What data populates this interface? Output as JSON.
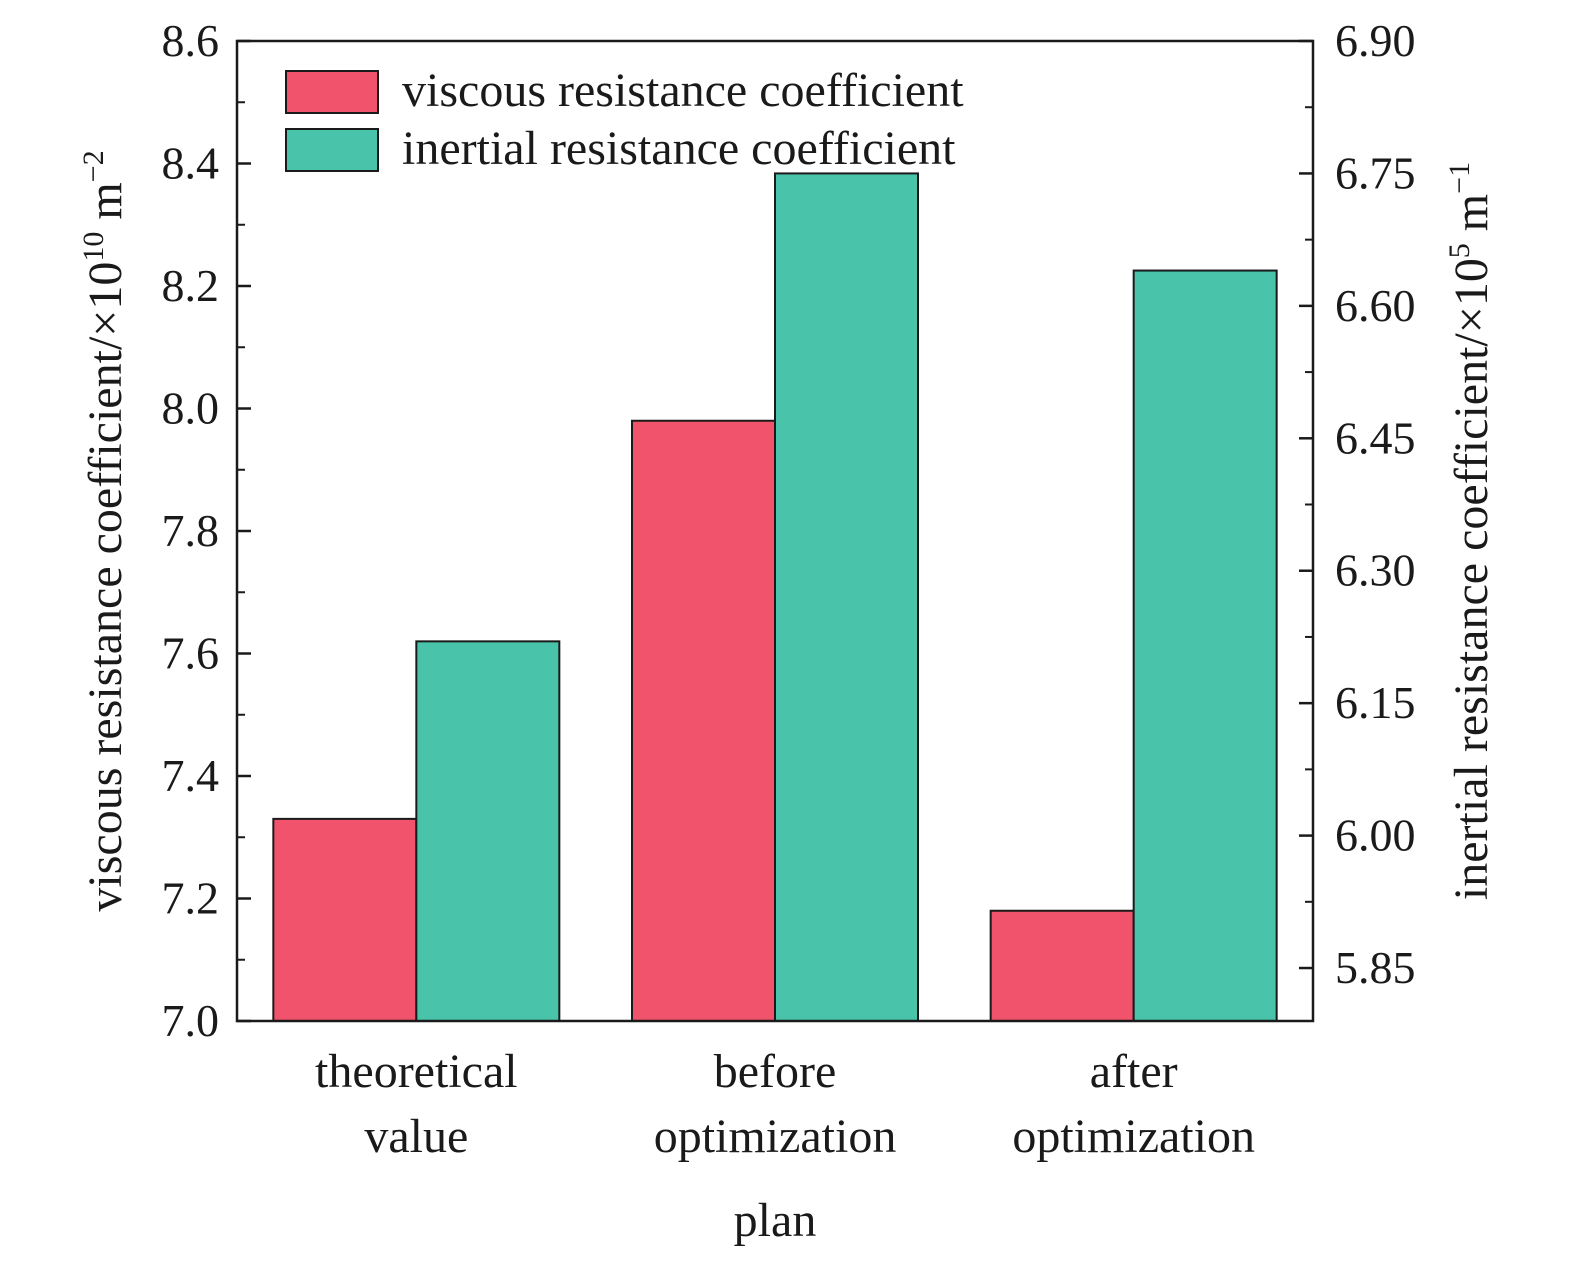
{
  "chart_data": {
    "type": "bar",
    "categories": [
      [
        "theoretical",
        "value"
      ],
      [
        "before",
        "optimization"
      ],
      [
        "after",
        "optimization"
      ]
    ],
    "xlabel": "plan",
    "ylabel_left": {
      "main": "viscous resistance coefficient/×10",
      "sup": "10",
      "unit": " m",
      "unit_sup": "−2"
    },
    "ylabel_right": {
      "main": "inertial resistance coefficient/×10",
      "sup": "5",
      "unit": " m",
      "unit_sup": "−1"
    },
    "y_left": {
      "lim": [
        7.0,
        8.6
      ],
      "ticks": [
        "7.0",
        "7.2",
        "7.4",
        "7.6",
        "7.8",
        "8.0",
        "8.2",
        "8.4",
        "8.6"
      ]
    },
    "y_right": {
      "lim": [
        5.79,
        6.9
      ],
      "ticks": [
        "5.85",
        "6.00",
        "6.15",
        "6.30",
        "6.45",
        "6.60",
        "6.75",
        "6.90"
      ]
    },
    "series": [
      {
        "name": "viscous resistance coefficient",
        "axis": "left",
        "color": "#f0536b",
        "values": [
          7.33,
          7.98,
          7.18
        ]
      },
      {
        "name": "inertial resistance coefficient",
        "axis": "right",
        "color": "#4ac3ab",
        "values": [
          6.22,
          6.75,
          6.64
        ]
      }
    ],
    "legend_position": "top-left",
    "grid": false
  }
}
